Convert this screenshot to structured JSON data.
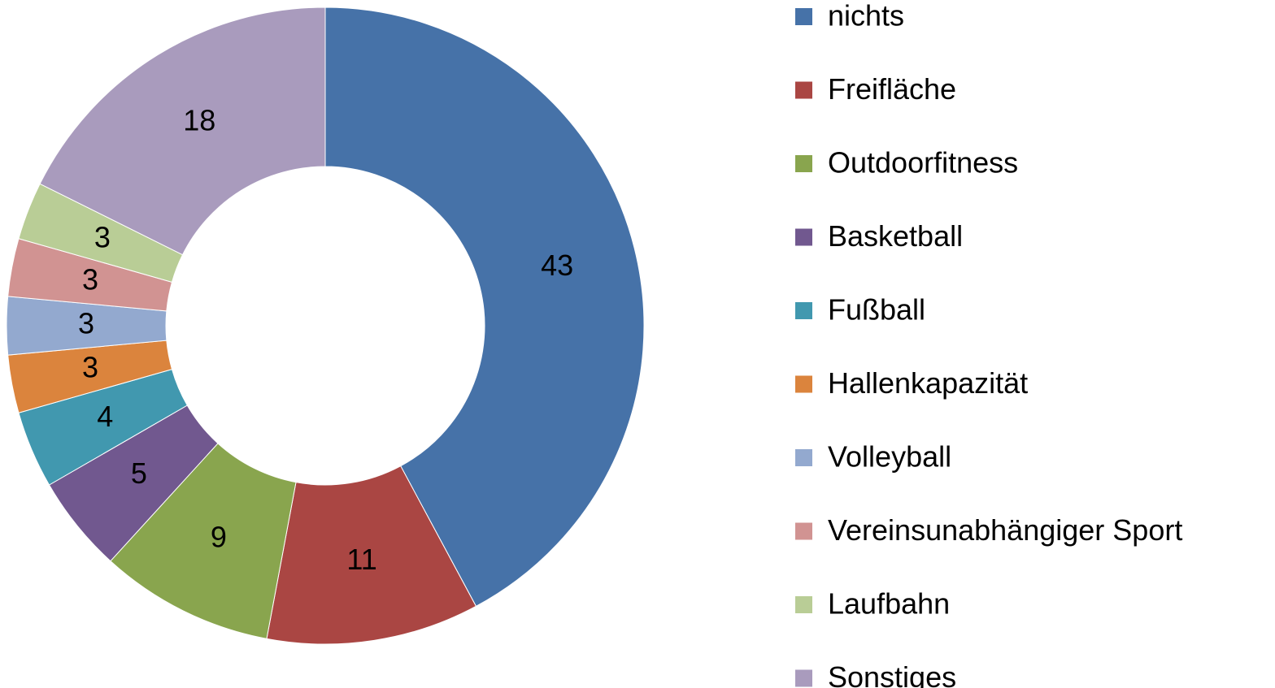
{
  "chart_data": {
    "type": "donut",
    "categories": [
      "nichts",
      "Freifläche",
      "Outdoorfitness",
      "Basketball",
      "Fußball",
      "Hallenkapazität",
      "Volleyball",
      "Vereinsunabhängiger Sport",
      "Laufbahn",
      "Sonstiges"
    ],
    "values": [
      43,
      11,
      9,
      5,
      4,
      3,
      3,
      3,
      3,
      18
    ],
    "colors": [
      "#4672a8",
      "#aa4643",
      "#89a54e",
      "#71588f",
      "#4198af",
      "#db843d",
      "#93a9cf",
      "#d19392",
      "#b9cd96",
      "#a99bbd"
    ],
    "legend": "right"
  }
}
